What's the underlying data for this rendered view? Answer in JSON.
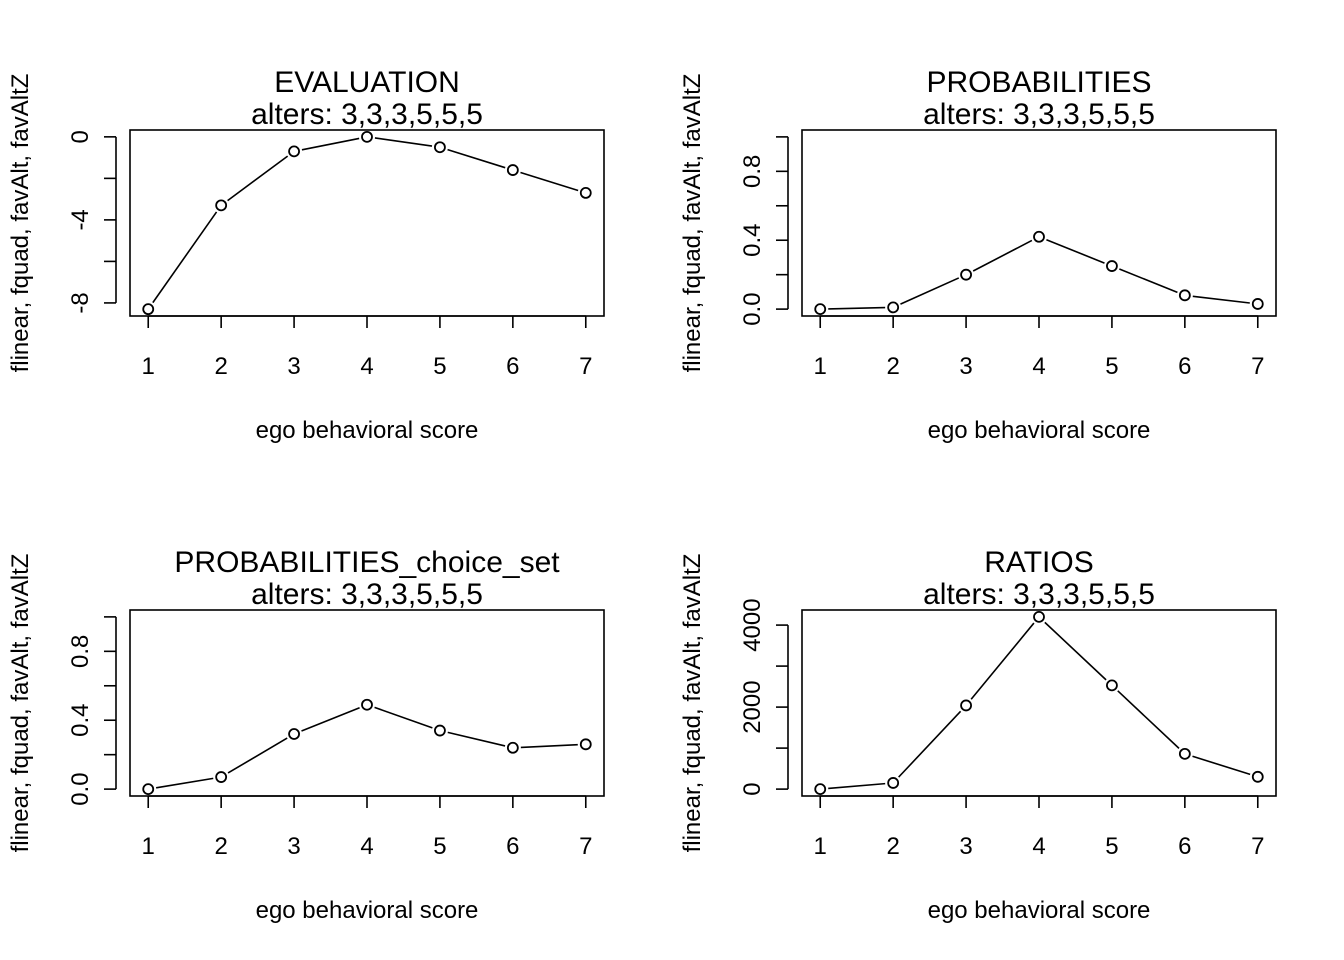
{
  "chart_data": [
    {
      "type": "line",
      "title": "EVALUATION",
      "subtitle": "alters: 3,3,3,5,5,5",
      "xlabel": "ego behavioral score",
      "ylabel": "flinear, fquad, favAlt, favAltZ",
      "x": [
        1,
        2,
        3,
        4,
        5,
        6,
        7
      ],
      "values": [
        -8.3,
        -3.3,
        -0.7,
        0.0,
        -0.5,
        -1.6,
        -2.7
      ],
      "xlim": [
        0.75,
        7.25
      ],
      "ylim": [
        -8.63,
        0.33
      ],
      "yticks": [
        0,
        -2,
        -4,
        -6,
        -8
      ],
      "yticklabels": [
        "0",
        "",
        "-4",
        "",
        "-8"
      ],
      "xticks": [
        1,
        2,
        3,
        4,
        5,
        6,
        7
      ],
      "xticklabels": [
        "1",
        "2",
        "3",
        "4",
        "5",
        "6",
        "7"
      ]
    },
    {
      "type": "line",
      "title": "PROBABILITIES",
      "subtitle": "alters: 3,3,3,5,5,5",
      "xlabel": "ego behavioral score",
      "ylabel": "flinear, fquad, favAlt, favAltZ",
      "x": [
        1,
        2,
        3,
        4,
        5,
        6,
        7
      ],
      "values": [
        0.0,
        0.01,
        0.2,
        0.42,
        0.25,
        0.08,
        0.03
      ],
      "xlim": [
        0.75,
        7.25
      ],
      "ylim": [
        -0.04,
        1.04
      ],
      "yticks": [
        0,
        0.2,
        0.4,
        0.6,
        0.8,
        1.0
      ],
      "yticklabels": [
        "0.0",
        "",
        "0.4",
        "",
        "0.8",
        ""
      ],
      "xticks": [
        1,
        2,
        3,
        4,
        5,
        6,
        7
      ],
      "xticklabels": [
        "1",
        "2",
        "3",
        "4",
        "5",
        "6",
        "7"
      ]
    },
    {
      "type": "line",
      "title": "PROBABILITIES_choice_set",
      "subtitle": "alters: 3,3,3,5,5,5",
      "xlabel": "ego behavioral score",
      "ylabel": "flinear, fquad, favAlt, favAltZ",
      "x": [
        1,
        2,
        3,
        4,
        5,
        6,
        7
      ],
      "values": [
        0.0,
        0.07,
        0.32,
        0.49,
        0.34,
        0.24,
        0.26
      ],
      "xlim": [
        0.75,
        7.25
      ],
      "ylim": [
        -0.04,
        1.04
      ],
      "yticks": [
        0,
        0.2,
        0.4,
        0.6,
        0.8,
        1.0
      ],
      "yticklabels": [
        "0.0",
        "",
        "0.4",
        "",
        "0.8",
        ""
      ],
      "xticks": [
        1,
        2,
        3,
        4,
        5,
        6,
        7
      ],
      "xticklabels": [
        "1",
        "2",
        "3",
        "4",
        "5",
        "6",
        "7"
      ]
    },
    {
      "type": "line",
      "title": "RATIOS",
      "subtitle": "alters: 3,3,3,5,5,5",
      "xlabel": "ego behavioral score",
      "ylabel": "flinear, fquad, favAlt, favAltZ",
      "x": [
        1,
        2,
        3,
        4,
        5,
        6,
        7
      ],
      "values": [
        0,
        150,
        2040,
        4200,
        2530,
        860,
        300
      ],
      "xlim": [
        0.75,
        7.25
      ],
      "ylim": [
        -168,
        4368
      ],
      "yticks": [
        0,
        1000,
        2000,
        3000,
        4000
      ],
      "yticklabels": [
        "0",
        "",
        "2000",
        "",
        "4000"
      ],
      "xticks": [
        1,
        2,
        3,
        4,
        5,
        6,
        7
      ],
      "xticklabels": [
        "1",
        "2",
        "3",
        "4",
        "5",
        "6",
        "7"
      ]
    }
  ]
}
